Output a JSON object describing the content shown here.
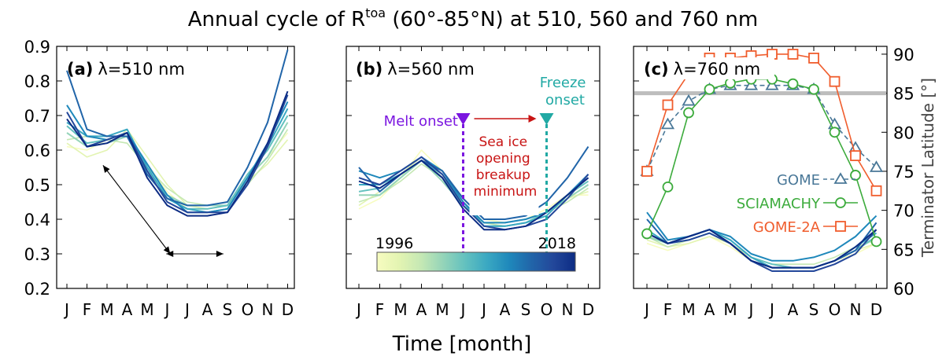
{
  "figure": {
    "title_prefix": "Annual cycle of R",
    "title_sup": "toa",
    "title_suffix": " (60°-85°N) at 510, 560 and 760 nm",
    "xlabel": "Time [month]",
    "y2label": "Terminator Latitude [°]"
  },
  "colors": {
    "seq": [
      "#f7fcc0",
      "#e3f4b2",
      "#c5e8b4",
      "#94d4b9",
      "#63c1bf",
      "#3aa8c2",
      "#1f88bb",
      "#2165a9",
      "#23479a",
      "#0c2c84"
    ],
    "gome": "#4a7898",
    "sciamachy": "#3cab3c",
    "gome2a": "#f05d2d",
    "melt": "#7b16e0",
    "freeze": "#21a9a4",
    "seaice": "#c81414",
    "ref85": "#bdbdbd"
  },
  "annotations": {
    "melt_onset": "Melt onset",
    "freeze_line1": "Freeze",
    "freeze_line2": "onset",
    "seaice_lines": [
      "Sea ice",
      "opening",
      "breakup",
      "minimum"
    ],
    "year_start": "1996",
    "year_end": "2018"
  },
  "chart_data": [
    {
      "type": "line",
      "panel": "(a)",
      "subtitle": "λ=510 nm",
      "categories": [
        "J",
        "F",
        "M",
        "A",
        "M",
        "J",
        "J",
        "A",
        "S",
        "O",
        "N",
        "D"
      ],
      "ylim": [
        0.2,
        0.9
      ],
      "yticks": [
        0.2,
        0.3,
        0.4,
        0.5,
        0.6,
        0.7,
        0.8,
        0.9
      ],
      "years": [
        1996,
        2018
      ],
      "series": [
        {
          "values": [
            0.61,
            0.6,
            0.63,
            0.65,
            0.56,
            0.48,
            0.43,
            0.43,
            0.44,
            0.52,
            0.58,
            0.65
          ]
        },
        {
          "values": [
            0.62,
            0.58,
            0.6,
            0.66,
            0.58,
            0.5,
            0.44,
            0.43,
            0.44,
            0.51,
            0.56,
            0.63
          ]
        },
        {
          "values": [
            0.63,
            0.64,
            0.63,
            0.62,
            0.55,
            0.49,
            0.45,
            0.44,
            0.45,
            0.5,
            0.57,
            0.66
          ]
        },
        {
          "values": [
            0.65,
            0.61,
            0.62,
            0.64,
            0.54,
            0.47,
            0.44,
            0.44,
            0.44,
            0.52,
            0.58,
            0.68
          ]
        },
        {
          "values": [
            0.67,
            0.62,
            0.63,
            0.65,
            0.55,
            0.46,
            0.43,
            0.43,
            0.44,
            0.53,
            0.6,
            0.7
          ]
        },
        {
          "values": [
            0.68,
            0.64,
            0.64,
            0.66,
            0.55,
            0.46,
            0.43,
            0.42,
            0.43,
            0.52,
            0.61,
            0.72
          ]
        },
        {
          "values": [
            0.73,
            0.64,
            0.63,
            0.65,
            0.56,
            0.47,
            0.42,
            0.42,
            0.43,
            0.52,
            0.62,
            0.74
          ]
        },
        {
          "values": [
            0.83,
            0.66,
            0.64,
            0.64,
            0.53,
            0.46,
            0.44,
            0.44,
            0.45,
            0.55,
            0.68,
            0.89
          ]
        },
        {
          "values": [
            0.71,
            0.61,
            0.63,
            0.65,
            0.54,
            0.45,
            0.42,
            0.42,
            0.42,
            0.5,
            0.61,
            0.76
          ]
        },
        {
          "values": [
            0.69,
            0.61,
            0.62,
            0.65,
            0.52,
            0.44,
            0.41,
            0.41,
            0.42,
            0.51,
            0.62,
            0.77
          ]
        }
      ],
      "arrows": [
        {
          "from": [
            6.15,
            0.3
          ],
          "to": [
            2.8,
            0.556
          ]
        },
        {
          "from": [
            5.95,
            0.3
          ],
          "to": [
            8.8,
            0.3
          ]
        }
      ]
    },
    {
      "type": "line",
      "panel": "(b)",
      "subtitle": "λ=560 nm",
      "categories": [
        "J",
        "F",
        "M",
        "A",
        "M",
        "J",
        "J",
        "A",
        "S",
        "O",
        "N",
        "D"
      ],
      "ylim": [
        0.2,
        0.9
      ],
      "years": [
        1996,
        2018
      ],
      "melt_onset_month": 6,
      "freeze_onset_month": 10,
      "series": [
        {
          "values": [
            0.43,
            0.46,
            0.52,
            0.6,
            0.54,
            0.46,
            0.4,
            0.39,
            0.4,
            0.43,
            0.47,
            0.47
          ]
        },
        {
          "values": [
            0.44,
            0.48,
            0.53,
            0.58,
            0.52,
            0.45,
            0.39,
            0.38,
            0.39,
            0.42,
            0.46,
            0.48
          ]
        },
        {
          "values": [
            0.45,
            0.47,
            0.51,
            0.56,
            0.52,
            0.44,
            0.39,
            0.38,
            0.39,
            0.42,
            0.45,
            0.49
          ]
        },
        {
          "values": [
            0.47,
            0.47,
            0.52,
            0.57,
            0.51,
            0.44,
            0.39,
            0.39,
            0.4,
            0.42,
            0.46,
            0.5
          ]
        },
        {
          "values": [
            0.48,
            0.49,
            0.53,
            0.57,
            0.52,
            0.44,
            0.38,
            0.38,
            0.39,
            0.42,
            0.47,
            0.51
          ]
        },
        {
          "values": [
            0.5,
            0.5,
            0.53,
            0.57,
            0.53,
            0.45,
            0.38,
            0.38,
            0.39,
            0.41,
            0.47,
            0.52
          ]
        },
        {
          "values": [
            0.54,
            0.52,
            0.54,
            0.58,
            0.54,
            0.45,
            0.39,
            0.39,
            0.4,
            0.42,
            0.47,
            0.53
          ]
        },
        {
          "values": [
            0.55,
            0.48,
            0.53,
            0.57,
            0.54,
            0.46,
            0.4,
            0.4,
            0.41,
            0.45,
            0.52,
            0.61
          ]
        },
        {
          "values": [
            0.52,
            0.5,
            0.54,
            0.58,
            0.53,
            0.44,
            0.38,
            0.37,
            0.38,
            0.4,
            0.46,
            0.53
          ]
        },
        {
          "values": [
            0.51,
            0.49,
            0.53,
            0.57,
            0.52,
            0.43,
            0.37,
            0.37,
            0.38,
            0.42,
            0.47,
            0.52
          ]
        }
      ]
    },
    {
      "type": "line",
      "panel": "(c)",
      "subtitle": "λ=760 nm",
      "categories": [
        "J",
        "F",
        "M",
        "A",
        "M",
        "J",
        "J",
        "A",
        "S",
        "O",
        "N",
        "D"
      ],
      "ylim": [
        0.2,
        0.9
      ],
      "y2lim": [
        60,
        91
      ],
      "y2ticks": [
        60,
        65,
        70,
        75,
        80,
        85,
        90
      ],
      "reference_latitude": 85,
      "years": [
        1996,
        2018
      ],
      "series": [
        {
          "values": [
            0.33,
            0.31,
            0.33,
            0.35,
            0.32,
            0.28,
            0.26,
            0.26,
            0.26,
            0.28,
            0.3,
            0.33
          ]
        },
        {
          "values": [
            0.34,
            0.32,
            0.33,
            0.35,
            0.33,
            0.29,
            0.27,
            0.26,
            0.26,
            0.28,
            0.31,
            0.33
          ]
        },
        {
          "values": [
            0.35,
            0.32,
            0.34,
            0.36,
            0.33,
            0.29,
            0.27,
            0.27,
            0.27,
            0.29,
            0.32,
            0.34
          ]
        },
        {
          "values": [
            0.35,
            0.33,
            0.34,
            0.36,
            0.33,
            0.28,
            0.26,
            0.26,
            0.26,
            0.28,
            0.31,
            0.35
          ]
        },
        {
          "values": [
            0.36,
            0.33,
            0.35,
            0.37,
            0.34,
            0.29,
            0.27,
            0.26,
            0.26,
            0.28,
            0.31,
            0.35
          ]
        },
        {
          "values": [
            0.37,
            0.33,
            0.35,
            0.37,
            0.34,
            0.29,
            0.26,
            0.26,
            0.26,
            0.28,
            0.32,
            0.36
          ]
        },
        {
          "values": [
            0.42,
            0.34,
            0.35,
            0.37,
            0.35,
            0.3,
            0.28,
            0.28,
            0.29,
            0.31,
            0.35,
            0.41
          ]
        },
        {
          "values": [
            0.4,
            0.33,
            0.35,
            0.37,
            0.33,
            0.28,
            0.26,
            0.26,
            0.26,
            0.28,
            0.31,
            0.39
          ]
        },
        {
          "values": [
            0.36,
            0.33,
            0.34,
            0.36,
            0.33,
            0.28,
            0.25,
            0.25,
            0.25,
            0.27,
            0.3,
            0.37
          ]
        },
        {
          "values": [
            0.36,
            0.33,
            0.35,
            0.37,
            0.33,
            0.28,
            0.26,
            0.26,
            0.26,
            0.28,
            0.32,
            0.37
          ]
        }
      ],
      "terminator_series": [
        {
          "name": "GOME",
          "marker": "triangle",
          "dashed": true,
          "values": [
            75.0,
            81.0,
            84.0,
            85.5,
            86.0,
            86.0,
            86.0,
            86.0,
            85.5,
            81.0,
            78.0,
            75.5
          ]
        },
        {
          "name": "SCIAMACHY",
          "marker": "circle",
          "dashed": false,
          "values": [
            67.0,
            73.0,
            82.5,
            85.5,
            86.3,
            86.8,
            86.8,
            86.2,
            85.5,
            80.0,
            74.5,
            66.0
          ]
        },
        {
          "name": "GOME-2A",
          "marker": "square",
          "dashed": false,
          "values": [
            75.0,
            83.5,
            87.5,
            89.5,
            89.5,
            89.8,
            90.0,
            90.0,
            89.5,
            86.5,
            77.0,
            72.5
          ]
        }
      ]
    }
  ]
}
